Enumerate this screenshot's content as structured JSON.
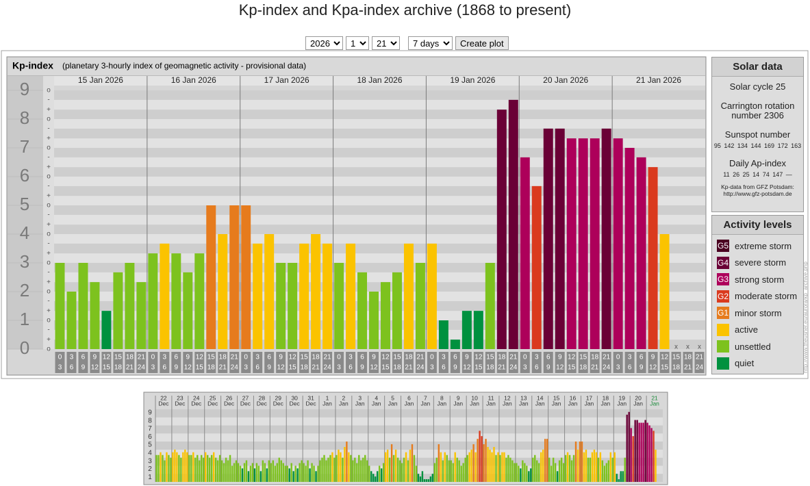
{
  "header": {
    "title": "Kp-index and Kpa-index archive (1868 to present)"
  },
  "controls": {
    "year": 2026,
    "month": 1,
    "day": 21,
    "range": "7 days",
    "button": "Create plot"
  },
  "solar_data": {
    "title": "Solar data",
    "cycle": "Solar cycle 25",
    "carrington": "Carrington rotation number 2306",
    "sunspot_title": "Sunspot number",
    "sunspots": [
      95,
      142,
      134,
      144,
      169,
      172,
      163
    ],
    "ap_title": "Daily Ap-index",
    "ap": [
      11,
      26,
      25,
      14,
      74,
      147,
      "—"
    ],
    "source": "Kp-data from GFZ Potsdam:",
    "source_url": "http://www.gfz-potsdam.de"
  },
  "activity_levels": {
    "title": "Activity levels",
    "levels": [
      {
        "code": "G5",
        "label": "extreme storm",
        "color": "#4a0020"
      },
      {
        "code": "G4",
        "label": "severe storm",
        "color": "#6a0036"
      },
      {
        "code": "G3",
        "label": "strong storm",
        "color": "#ad005a"
      },
      {
        "code": "G2",
        "label": "moderate storm",
        "color": "#da3a1e"
      },
      {
        "code": "G1",
        "label": "minor storm",
        "color": "#e67b1d"
      },
      {
        "label": "active",
        "color": "#fbc300"
      },
      {
        "label": "unsettled",
        "color": "#7dc21e"
      },
      {
        "label": "quiet",
        "color": "#00913f"
      }
    ]
  },
  "side_url": "http://www.theusner.eu/aurora/kp_archive.php",
  "chart_data": [
    {
      "type": "bar",
      "title": "Kp-index",
      "subtitle": "(planetary 3-hourly index of geomagnetic activity - provisional data)",
      "days": [
        "15 Jan 2026",
        "16 Jan 2026",
        "17 Jan 2026",
        "18 Jan 2026",
        "19 Jan 2026",
        "20 Jan 2026",
        "21 Jan 2026"
      ],
      "hours": [
        {
          "from": 0,
          "to": 3
        },
        {
          "from": 3,
          "to": 6
        },
        {
          "from": 6,
          "to": 9
        },
        {
          "from": 9,
          "to": 12
        },
        {
          "from": 12,
          "to": 15
        },
        {
          "from": 15,
          "to": 18
        },
        {
          "from": 18,
          "to": 21
        },
        {
          "from": 21,
          "to": 24
        }
      ],
      "values": [
        3,
        2,
        3,
        2.33,
        1.33,
        2.67,
        3,
        2.33,
        3.33,
        3.67,
        3.33,
        2.67,
        3.33,
        5,
        4,
        5,
        5,
        3.67,
        4,
        3,
        3,
        3.67,
        4,
        3.67,
        3,
        3.67,
        2.67,
        2,
        2.33,
        2.67,
        3.67,
        3,
        3.67,
        1,
        0.33,
        1.33,
        1.33,
        3,
        8.33,
        8.67,
        6.67,
        5.67,
        7.67,
        7.67,
        7.33,
        7.33,
        7.33,
        7.67,
        7.33,
        7,
        6.67,
        6.33,
        4,
        null,
        null,
        null
      ],
      "colors": [
        "#7dc21e",
        "#7dc21e",
        "#7dc21e",
        "#7dc21e",
        "#00913f",
        "#7dc21e",
        "#7dc21e",
        "#7dc21e",
        "#7dc21e",
        "#fbc300",
        "#7dc21e",
        "#7dc21e",
        "#7dc21e",
        "#e67b1d",
        "#fbc300",
        "#e67b1d",
        "#e67b1d",
        "#fbc300",
        "#fbc300",
        "#7dc21e",
        "#7dc21e",
        "#fbc300",
        "#fbc300",
        "#fbc300",
        "#7dc21e",
        "#fbc300",
        "#7dc21e",
        "#7dc21e",
        "#7dc21e",
        "#7dc21e",
        "#fbc300",
        "#7dc21e",
        "#fbc300",
        "#00913f",
        "#00913f",
        "#00913f",
        "#00913f",
        "#7dc21e",
        "#6a0036",
        "#6a0036",
        "#ad005a",
        "#da3a1e",
        "#6a0036",
        "#6a0036",
        "#ad005a",
        "#ad005a",
        "#ad005a",
        "#6a0036",
        "#ad005a",
        "#ad005a",
        "#ad005a",
        "#da3a1e",
        "#fbc300",
        null,
        null,
        null
      ],
      "missing_label": "x",
      "ylim": [
        0,
        9.5
      ],
      "yticks": [
        0,
        1,
        2,
        3,
        4,
        5,
        6,
        7,
        8,
        9
      ],
      "minor_yticks": [
        {
          "value": 0,
          "label": "o"
        },
        {
          "value": 0.33,
          "label": "+"
        },
        {
          "value": 0.67,
          "label": "-"
        },
        {
          "value": 1,
          "label": "o"
        },
        {
          "value": 1.33,
          "label": "+"
        },
        {
          "value": 1.67,
          "label": "-"
        },
        {
          "value": 2,
          "label": "o"
        },
        {
          "value": 2.33,
          "label": "+"
        },
        {
          "value": 2.67,
          "label": "-"
        },
        {
          "value": 3,
          "label": "o"
        },
        {
          "value": 3.33,
          "label": "+"
        },
        {
          "value": 3.67,
          "label": "-"
        },
        {
          "value": 4,
          "label": "o"
        },
        {
          "value": 4.33,
          "label": "+"
        },
        {
          "value": 4.67,
          "label": "-"
        },
        {
          "value": 5,
          "label": "o"
        },
        {
          "value": 5.33,
          "label": "+"
        },
        {
          "value": 5.67,
          "label": "-"
        },
        {
          "value": 6,
          "label": "o"
        },
        {
          "value": 6.33,
          "label": "+"
        },
        {
          "value": 6.67,
          "label": "-"
        },
        {
          "value": 7,
          "label": "o"
        },
        {
          "value": 7.33,
          "label": "+"
        },
        {
          "value": 7.67,
          "label": "-"
        },
        {
          "value": 8,
          "label": "o"
        },
        {
          "value": 8.33,
          "label": "+"
        },
        {
          "value": 8.67,
          "label": "-"
        },
        {
          "value": 9,
          "label": "o"
        }
      ],
      "grid": true
    },
    {
      "type": "bar",
      "days": [
        {
          "day": 22,
          "month": "Dec"
        },
        {
          "day": 23,
          "month": "Dec"
        },
        {
          "day": 24,
          "month": "Dec"
        },
        {
          "day": 25,
          "month": "Dec"
        },
        {
          "day": 26,
          "month": "Dec"
        },
        {
          "day": 27,
          "month": "Dec"
        },
        {
          "day": 28,
          "month": "Dec"
        },
        {
          "day": 29,
          "month": "Dec"
        },
        {
          "day": 30,
          "month": "Dec"
        },
        {
          "day": 31,
          "month": "Dec"
        },
        {
          "day": 1,
          "month": "Jan"
        },
        {
          "day": 2,
          "month": "Jan"
        },
        {
          "day": 3,
          "month": "Jan"
        },
        {
          "day": 4,
          "month": "Jan"
        },
        {
          "day": 5,
          "month": "Jan"
        },
        {
          "day": 6,
          "month": "Jan"
        },
        {
          "day": 7,
          "month": "Jan"
        },
        {
          "day": 8,
          "month": "Jan"
        },
        {
          "day": 9,
          "month": "Jan"
        },
        {
          "day": 10,
          "month": "Jan"
        },
        {
          "day": 11,
          "month": "Jan"
        },
        {
          "day": 12,
          "month": "Jan"
        },
        {
          "day": 13,
          "month": "Jan"
        },
        {
          "day": 14,
          "month": "Jan"
        },
        {
          "day": 15,
          "month": "Jan"
        },
        {
          "day": 16,
          "month": "Jan"
        },
        {
          "day": 17,
          "month": "Jan"
        },
        {
          "day": 18,
          "month": "Jan"
        },
        {
          "day": 19,
          "month": "Jan"
        },
        {
          "day": 20,
          "month": "Jan"
        },
        {
          "day": 21,
          "month": "Jan"
        }
      ],
      "current_day_color": "#1a8a3a",
      "values": [
        3.33,
        3.33,
        3.67,
        3.33,
        2.67,
        3.67,
        3.33,
        3,
        3.67,
        4,
        3.67,
        3.33,
        3,
        3.67,
        4,
        3.67,
        3.33,
        3.33,
        3.67,
        3,
        3.33,
        2.67,
        3.33,
        3,
        3.67,
        3.33,
        3,
        3.33,
        3.67,
        3,
        2.67,
        3.33,
        2.67,
        2.33,
        3,
        2.67,
        3.33,
        2,
        2.33,
        2.67,
        2.33,
        2,
        1.67,
        2.33,
        2.67,
        1.33,
        2,
        2.33,
        1.67,
        2.33,
        2,
        1.33,
        2.67,
        2.33,
        1.67,
        2.67,
        2.33,
        2.67,
        2,
        2.33,
        3,
        2.67,
        2.33,
        2,
        2,
        1.67,
        2.33,
        1.33,
        2,
        1.67,
        2.33,
        2.67,
        2.33,
        2,
        2.67,
        1.67,
        2.33,
        2,
        1.33,
        2,
        2.67,
        3,
        3.33,
        2.67,
        3,
        3.33,
        3.67,
        3,
        3.33,
        4,
        3.67,
        3,
        4.33,
        5,
        3.67,
        3.33,
        2.67,
        3,
        2.33,
        3.33,
        2.67,
        3,
        3.33,
        2.67,
        2,
        1.33,
        1,
        0.67,
        1.33,
        2,
        1.67,
        2.33,
        3.67,
        4,
        3,
        4.67,
        3.33,
        4,
        3,
        2.67,
        2.33,
        3,
        3.67,
        2.67,
        4,
        4.67,
        3.33,
        2,
        1,
        0.67,
        1.33,
        0.33,
        0.33,
        0.33,
        0.67,
        1,
        2.33,
        3,
        4.67,
        3.67,
        2.67,
        3.67,
        3.33,
        2.67,
        2.67,
        2.33,
        3.67,
        3,
        2.67,
        2,
        2.33,
        3,
        3.33,
        3.67,
        4,
        4.67,
        3.67,
        5.33,
        6.33,
        5.67,
        4.67,
        5.33,
        4.33,
        4,
        3.67,
        4.33,
        3.33,
        3.67,
        3.33,
        3.67,
        3.67,
        3,
        3.33,
        3,
        2.67,
        2.33,
        2.33,
        2,
        1.67,
        2.67,
        2.33,
        2,
        1.33,
        1.67,
        3,
        3.33,
        2.67,
        2.33,
        3.67,
        4,
        5.33,
        5.33,
        3,
        2,
        3,
        2.33,
        1.33,
        2.67,
        3,
        2.33,
        3.33,
        3.67,
        3.33,
        2.67,
        3.33,
        5,
        4,
        5,
        5,
        3.67,
        4,
        3,
        3,
        3.67,
        4,
        3.67,
        3,
        3.67,
        2.67,
        2,
        2.33,
        2.67,
        3.67,
        3,
        3.67,
        1,
        0.33,
        1.33,
        1.33,
        3,
        8.33,
        8.67,
        6.67,
        5.67,
        7.67,
        7.67,
        7.33,
        7.33,
        7.33,
        7.67,
        7.33,
        7,
        6.67,
        6.33,
        4,
        null,
        null,
        null
      ],
      "colors": [
        "#7dc21e",
        "#7dc21e",
        "#fbc300",
        "#7dc21e",
        "#7dc21e",
        "#fbc300",
        "#7dc21e",
        "#7dc21e",
        "#fbc300",
        "#fbc300",
        "#fbc300",
        "#7dc21e",
        "#7dc21e",
        "#fbc300",
        "#fbc300",
        "#fbc300",
        "#7dc21e",
        "#7dc21e",
        "#fbc300",
        "#7dc21e",
        "#7dc21e",
        "#7dc21e",
        "#7dc21e",
        "#7dc21e",
        "#fbc300",
        "#7dc21e",
        "#7dc21e",
        "#7dc21e",
        "#fbc300",
        "#7dc21e",
        "#7dc21e",
        "#7dc21e",
        "#7dc21e",
        "#7dc21e",
        "#7dc21e",
        "#7dc21e",
        "#7dc21e",
        "#7dc21e",
        "#7dc21e",
        "#7dc21e",
        "#7dc21e",
        "#7dc21e",
        "#00913f",
        "#7dc21e",
        "#7dc21e",
        "#00913f",
        "#7dc21e",
        "#7dc21e",
        "#00913f",
        "#7dc21e",
        "#7dc21e",
        "#00913f",
        "#7dc21e",
        "#7dc21e",
        "#00913f",
        "#7dc21e",
        "#7dc21e",
        "#7dc21e",
        "#7dc21e",
        "#7dc21e",
        "#7dc21e",
        "#7dc21e",
        "#7dc21e",
        "#7dc21e",
        "#7dc21e",
        "#00913f",
        "#7dc21e",
        "#00913f",
        "#7dc21e",
        "#00913f",
        "#7dc21e",
        "#7dc21e",
        "#7dc21e",
        "#7dc21e",
        "#7dc21e",
        "#00913f",
        "#7dc21e",
        "#7dc21e",
        "#00913f",
        "#7dc21e",
        "#7dc21e",
        "#7dc21e",
        "#7dc21e",
        "#7dc21e",
        "#7dc21e",
        "#7dc21e",
        "#fbc300",
        "#7dc21e",
        "#7dc21e",
        "#fbc300",
        "#fbc300",
        "#7dc21e",
        "#fbc300",
        "#e67b1d",
        "#fbc300",
        "#7dc21e",
        "#7dc21e",
        "#7dc21e",
        "#7dc21e",
        "#7dc21e",
        "#7dc21e",
        "#7dc21e",
        "#7dc21e",
        "#7dc21e",
        "#7dc21e",
        "#00913f",
        "#00913f",
        "#00913f",
        "#00913f",
        "#7dc21e",
        "#00913f",
        "#7dc21e",
        "#fbc300",
        "#fbc300",
        "#7dc21e",
        "#e67b1d",
        "#7dc21e",
        "#fbc300",
        "#7dc21e",
        "#7dc21e",
        "#7dc21e",
        "#7dc21e",
        "#fbc300",
        "#7dc21e",
        "#fbc300",
        "#e67b1d",
        "#7dc21e",
        "#7dc21e",
        "#00913f",
        "#00913f",
        "#00913f",
        "#00913f",
        "#00913f",
        "#00913f",
        "#00913f",
        "#00913f",
        "#7dc21e",
        "#7dc21e",
        "#e67b1d",
        "#fbc300",
        "#7dc21e",
        "#fbc300",
        "#7dc21e",
        "#7dc21e",
        "#7dc21e",
        "#7dc21e",
        "#fbc300",
        "#7dc21e",
        "#7dc21e",
        "#7dc21e",
        "#7dc21e",
        "#7dc21e",
        "#7dc21e",
        "#fbc300",
        "#fbc300",
        "#e67b1d",
        "#fbc300",
        "#e67b1d",
        "#da3a1e",
        "#da3a1e",
        "#e67b1d",
        "#e67b1d",
        "#fbc300",
        "#fbc300",
        "#fbc300",
        "#fbc300",
        "#7dc21e",
        "#fbc300",
        "#7dc21e",
        "#fbc300",
        "#fbc300",
        "#7dc21e",
        "#7dc21e",
        "#7dc21e",
        "#7dc21e",
        "#7dc21e",
        "#7dc21e",
        "#7dc21e",
        "#00913f",
        "#7dc21e",
        "#7dc21e",
        "#7dc21e",
        "#00913f",
        "#00913f",
        "#7dc21e",
        "#7dc21e",
        "#7dc21e",
        "#7dc21e",
        "#fbc300",
        "#fbc300",
        "#e67b1d",
        "#e67b1d",
        "#7dc21e",
        "#7dc21e",
        "#7dc21e",
        "#7dc21e",
        "#00913f",
        "#7dc21e",
        "#7dc21e",
        "#7dc21e",
        "#7dc21e",
        "#fbc300",
        "#7dc21e",
        "#7dc21e",
        "#7dc21e",
        "#e67b1d",
        "#fbc300",
        "#e67b1d",
        "#e67b1d",
        "#fbc300",
        "#fbc300",
        "#7dc21e",
        "#7dc21e",
        "#fbc300",
        "#fbc300",
        "#fbc300",
        "#7dc21e",
        "#fbc300",
        "#7dc21e",
        "#7dc21e",
        "#7dc21e",
        "#7dc21e",
        "#fbc300",
        "#7dc21e",
        "#fbc300",
        "#00913f",
        "#00913f",
        "#00913f",
        "#00913f",
        "#7dc21e",
        "#6a0036",
        "#6a0036",
        "#ad005a",
        "#da3a1e",
        "#6a0036",
        "#6a0036",
        "#ad005a",
        "#ad005a",
        "#ad005a",
        "#6a0036",
        "#ad005a",
        "#ad005a",
        "#ad005a",
        "#da3a1e",
        "#fbc300",
        null,
        null,
        null
      ],
      "ylim": [
        0,
        9.33
      ],
      "yticks": [
        1,
        2,
        3,
        4,
        5,
        6,
        7,
        8,
        9
      ],
      "grid": true
    }
  ]
}
